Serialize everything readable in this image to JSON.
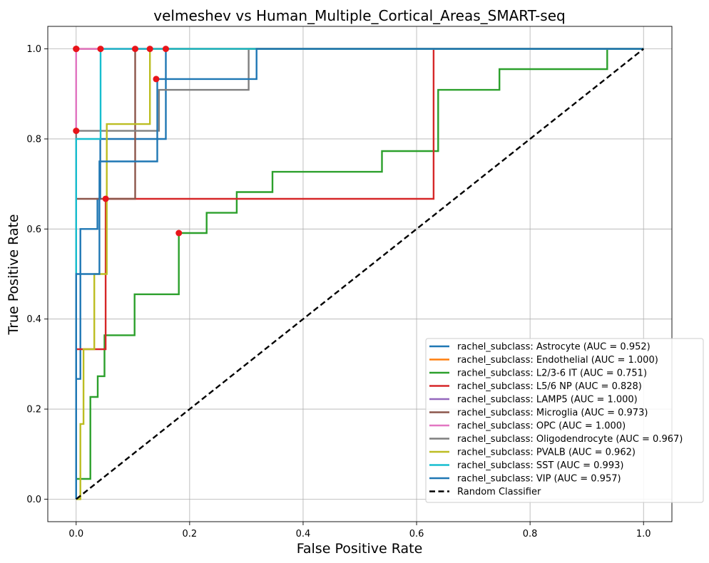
{
  "chart_data": {
    "type": "line",
    "title": "velmeshev vs Human_Multiple_Cortical_Areas_SMART-seq",
    "xlabel": "False Positive Rate",
    "ylabel": "True Positive Rate",
    "xlim": [
      -0.05,
      1.05
    ],
    "ylim": [
      -0.05,
      1.05
    ],
    "xticks": [
      "0.0",
      "0.2",
      "0.4",
      "0.6",
      "0.8",
      "1.0"
    ],
    "yticks": [
      "0.0",
      "0.2",
      "0.4",
      "0.6",
      "0.8",
      "1.0"
    ],
    "xtick_values": [
      0,
      0.2,
      0.4,
      0.6,
      0.8,
      1.0
    ],
    "ytick_values": [
      0,
      0.2,
      0.4,
      0.6,
      0.8,
      1.0
    ],
    "grid": true,
    "legend_position": "bottom-right",
    "series": [
      {
        "name": "rachel_subclass: Astrocyte (AUC = 0.952)",
        "color": "#1f77b4",
        "x": [
          0,
          0,
          0.0075,
          0.0075,
          0.0375,
          0.0375,
          0.0425,
          0.0425,
          0.158,
          0.158,
          1
        ],
        "y": [
          0,
          0.267,
          0.267,
          0.6,
          0.6,
          0.667,
          0.667,
          0.8,
          0.8,
          1.0,
          1.0
        ],
        "marker": [
          0.158,
          1.0
        ]
      },
      {
        "name": "rachel_subclass: Endothelial (AUC = 1.000)",
        "color": "#ff7f0e",
        "x": [
          0,
          0,
          1
        ],
        "y": [
          0,
          1.0,
          1.0
        ],
        "marker": [
          0.0,
          1.0
        ]
      },
      {
        "name": "rachel_subclass: L2/3-6 IT (AUC = 0.751)",
        "color": "#2ca02c",
        "x": [
          0,
          0,
          0.025,
          0.025,
          0.038,
          0.038,
          0.05,
          0.05,
          0.103,
          0.103,
          0.181,
          0.181,
          0.23,
          0.23,
          0.283,
          0.283,
          0.346,
          0.346,
          0.539,
          0.539,
          0.638,
          0.638,
          0.746,
          0.746,
          0.936,
          0.936,
          1
        ],
        "y": [
          0,
          0.045,
          0.045,
          0.227,
          0.227,
          0.273,
          0.273,
          0.364,
          0.364,
          0.455,
          0.455,
          0.591,
          0.591,
          0.636,
          0.636,
          0.682,
          0.682,
          0.727,
          0.727,
          0.773,
          0.773,
          0.909,
          0.909,
          0.955,
          0.955,
          1.0,
          1.0
        ],
        "marker": [
          0.181,
          0.591
        ]
      },
      {
        "name": "rachel_subclass: L5/6 NP (AUC = 0.828)",
        "color": "#d62728",
        "x": [
          0,
          0,
          0.052,
          0.052,
          0.63,
          0.63,
          1
        ],
        "y": [
          0,
          0.333,
          0.333,
          0.667,
          0.667,
          1.0,
          1.0
        ],
        "marker": [
          0.052,
          0.667
        ]
      },
      {
        "name": "rachel_subclass: LAMP5 (AUC = 1.000)",
        "color": "#9467bd",
        "x": [
          0,
          0,
          1
        ],
        "y": [
          0,
          1.0,
          1.0
        ],
        "marker": [
          0.0,
          1.0
        ]
      },
      {
        "name": "rachel_subclass: Microglia (AUC = 0.973)",
        "color": "#8c564b",
        "x": [
          0,
          0,
          0.104,
          0.104,
          1
        ],
        "y": [
          0,
          0.667,
          0.667,
          1.0,
          1.0
        ],
        "marker": [
          0.104,
          1.0
        ]
      },
      {
        "name": "rachel_subclass: OPC (AUC = 1.000)",
        "color": "#e377c2",
        "x": [
          0,
          0,
          1
        ],
        "y": [
          0,
          1.0,
          1.0
        ],
        "marker": [
          0.0,
          1.0
        ]
      },
      {
        "name": "rachel_subclass: Oligodendrocyte (AUC = 0.967)",
        "color": "#7f7f7f",
        "x": [
          0,
          0,
          0.146,
          0.146,
          0.304,
          0.304,
          1
        ],
        "y": [
          0,
          0.818,
          0.818,
          0.909,
          0.909,
          1.0,
          1.0
        ],
        "marker": [
          0.0,
          0.818
        ]
      },
      {
        "name": "rachel_subclass: PVALB (AUC = 0.962)",
        "color": "#bcbd22",
        "x": [
          0,
          0.0075,
          0.0075,
          0.013,
          0.013,
          0.032,
          0.032,
          0.054,
          0.054,
          0.13,
          0.13,
          1
        ],
        "y": [
          0,
          0,
          0.167,
          0.167,
          0.333,
          0.333,
          0.5,
          0.5,
          0.833,
          0.833,
          1.0,
          1.0
        ],
        "marker": [
          0.13,
          1.0
        ]
      },
      {
        "name": "rachel_subclass: SST (AUC = 0.993)",
        "color": "#17becf",
        "x": [
          0,
          0,
          0.043,
          0.043,
          1
        ],
        "y": [
          0,
          0.8,
          0.8,
          1.0,
          1.0
        ],
        "marker": [
          0.043,
          1.0
        ]
      },
      {
        "name": "rachel_subclass: VIP (AUC = 0.957)",
        "color": "#1f77b4",
        "x": [
          0,
          0,
          0.041,
          0.041,
          0.143,
          0.143,
          0.318,
          0.318,
          1
        ],
        "y": [
          0,
          0.5,
          0.5,
          0.75,
          0.75,
          0.933,
          0.933,
          1.0,
          1.0
        ],
        "marker": [
          0.141,
          0.933
        ]
      },
      {
        "name": "Random Classifier",
        "color": "#000000",
        "dashed": true,
        "x": [
          0,
          1
        ],
        "y": [
          0,
          1
        ]
      }
    ]
  }
}
